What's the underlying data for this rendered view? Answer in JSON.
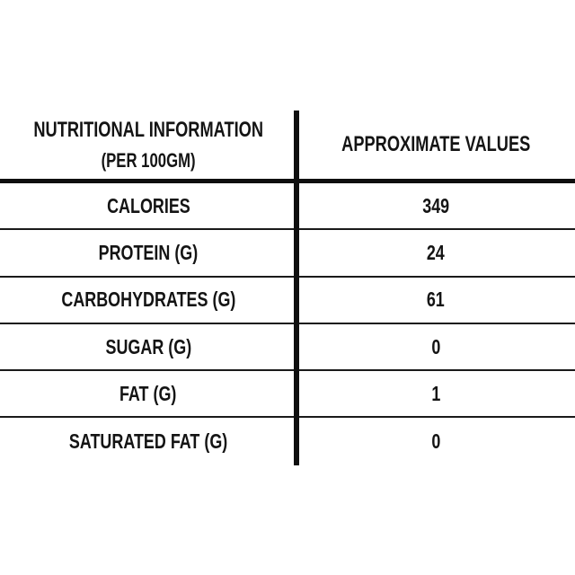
{
  "nutrition_table": {
    "header": {
      "col1_line1": "NUTRITIONAL INFORMATION",
      "col1_line2": "(PER 100GM)",
      "col2": "APPROXIMATE VALUES"
    },
    "rows": [
      {
        "label": "CALORIES",
        "value": "349"
      },
      {
        "label": "PROTEIN (G)",
        "value": "24"
      },
      {
        "label": "CARBOHYDRATES (G)",
        "value": "61"
      },
      {
        "label": "SUGAR (G)",
        "value": "0"
      },
      {
        "label": "FAT (G)",
        "value": "1"
      },
      {
        "label": "SATURATED FAT (G)",
        "value": "0"
      }
    ],
    "colors": {
      "text": "#141414",
      "line": "#0f0f0f",
      "background": "#ffffff"
    }
  }
}
